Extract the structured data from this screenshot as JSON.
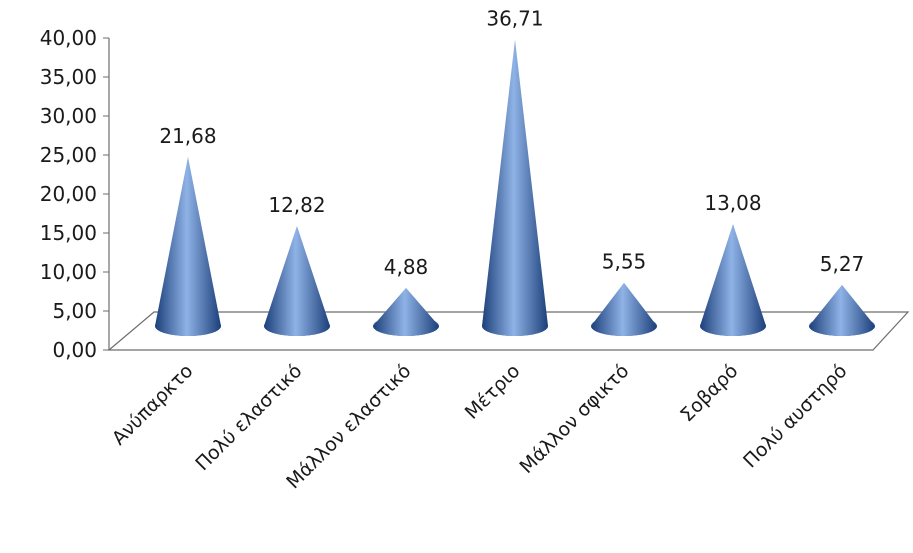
{
  "chart_data": {
    "type": "bar",
    "bar_shape": "cone-3d",
    "categories": [
      "Ανύπαρκτο",
      "Πολύ ελαστικό",
      "Μάλλον ελαστικό",
      "Μέτριο",
      "Μάλλον σφικτό",
      "Σοβαρό",
      "Πολύ αυστηρό"
    ],
    "values": [
      21.68,
      12.82,
      4.88,
      36.71,
      5.55,
      13.08,
      5.27
    ],
    "value_labels": [
      "21,68",
      "12,82",
      "4,88",
      "36,71",
      "5,55",
      "13,08",
      "5,27"
    ],
    "ylim": [
      0,
      40
    ],
    "y_ticks": [
      0,
      5,
      10,
      15,
      20,
      25,
      30,
      35,
      40
    ],
    "y_tick_labels": [
      "0,00",
      "5,00",
      "10,00",
      "15,00",
      "20,00",
      "25,00",
      "30,00",
      "35,00",
      "40,00"
    ],
    "title": "",
    "xlabel": "",
    "ylabel": "",
    "grid": false,
    "legend": "none",
    "colors": {
      "cone_dark": "#1c3f7a",
      "cone_mid": "#3d6fb8",
      "cone_light": "#8fb3e6",
      "axis": "#6e6e6e"
    }
  }
}
